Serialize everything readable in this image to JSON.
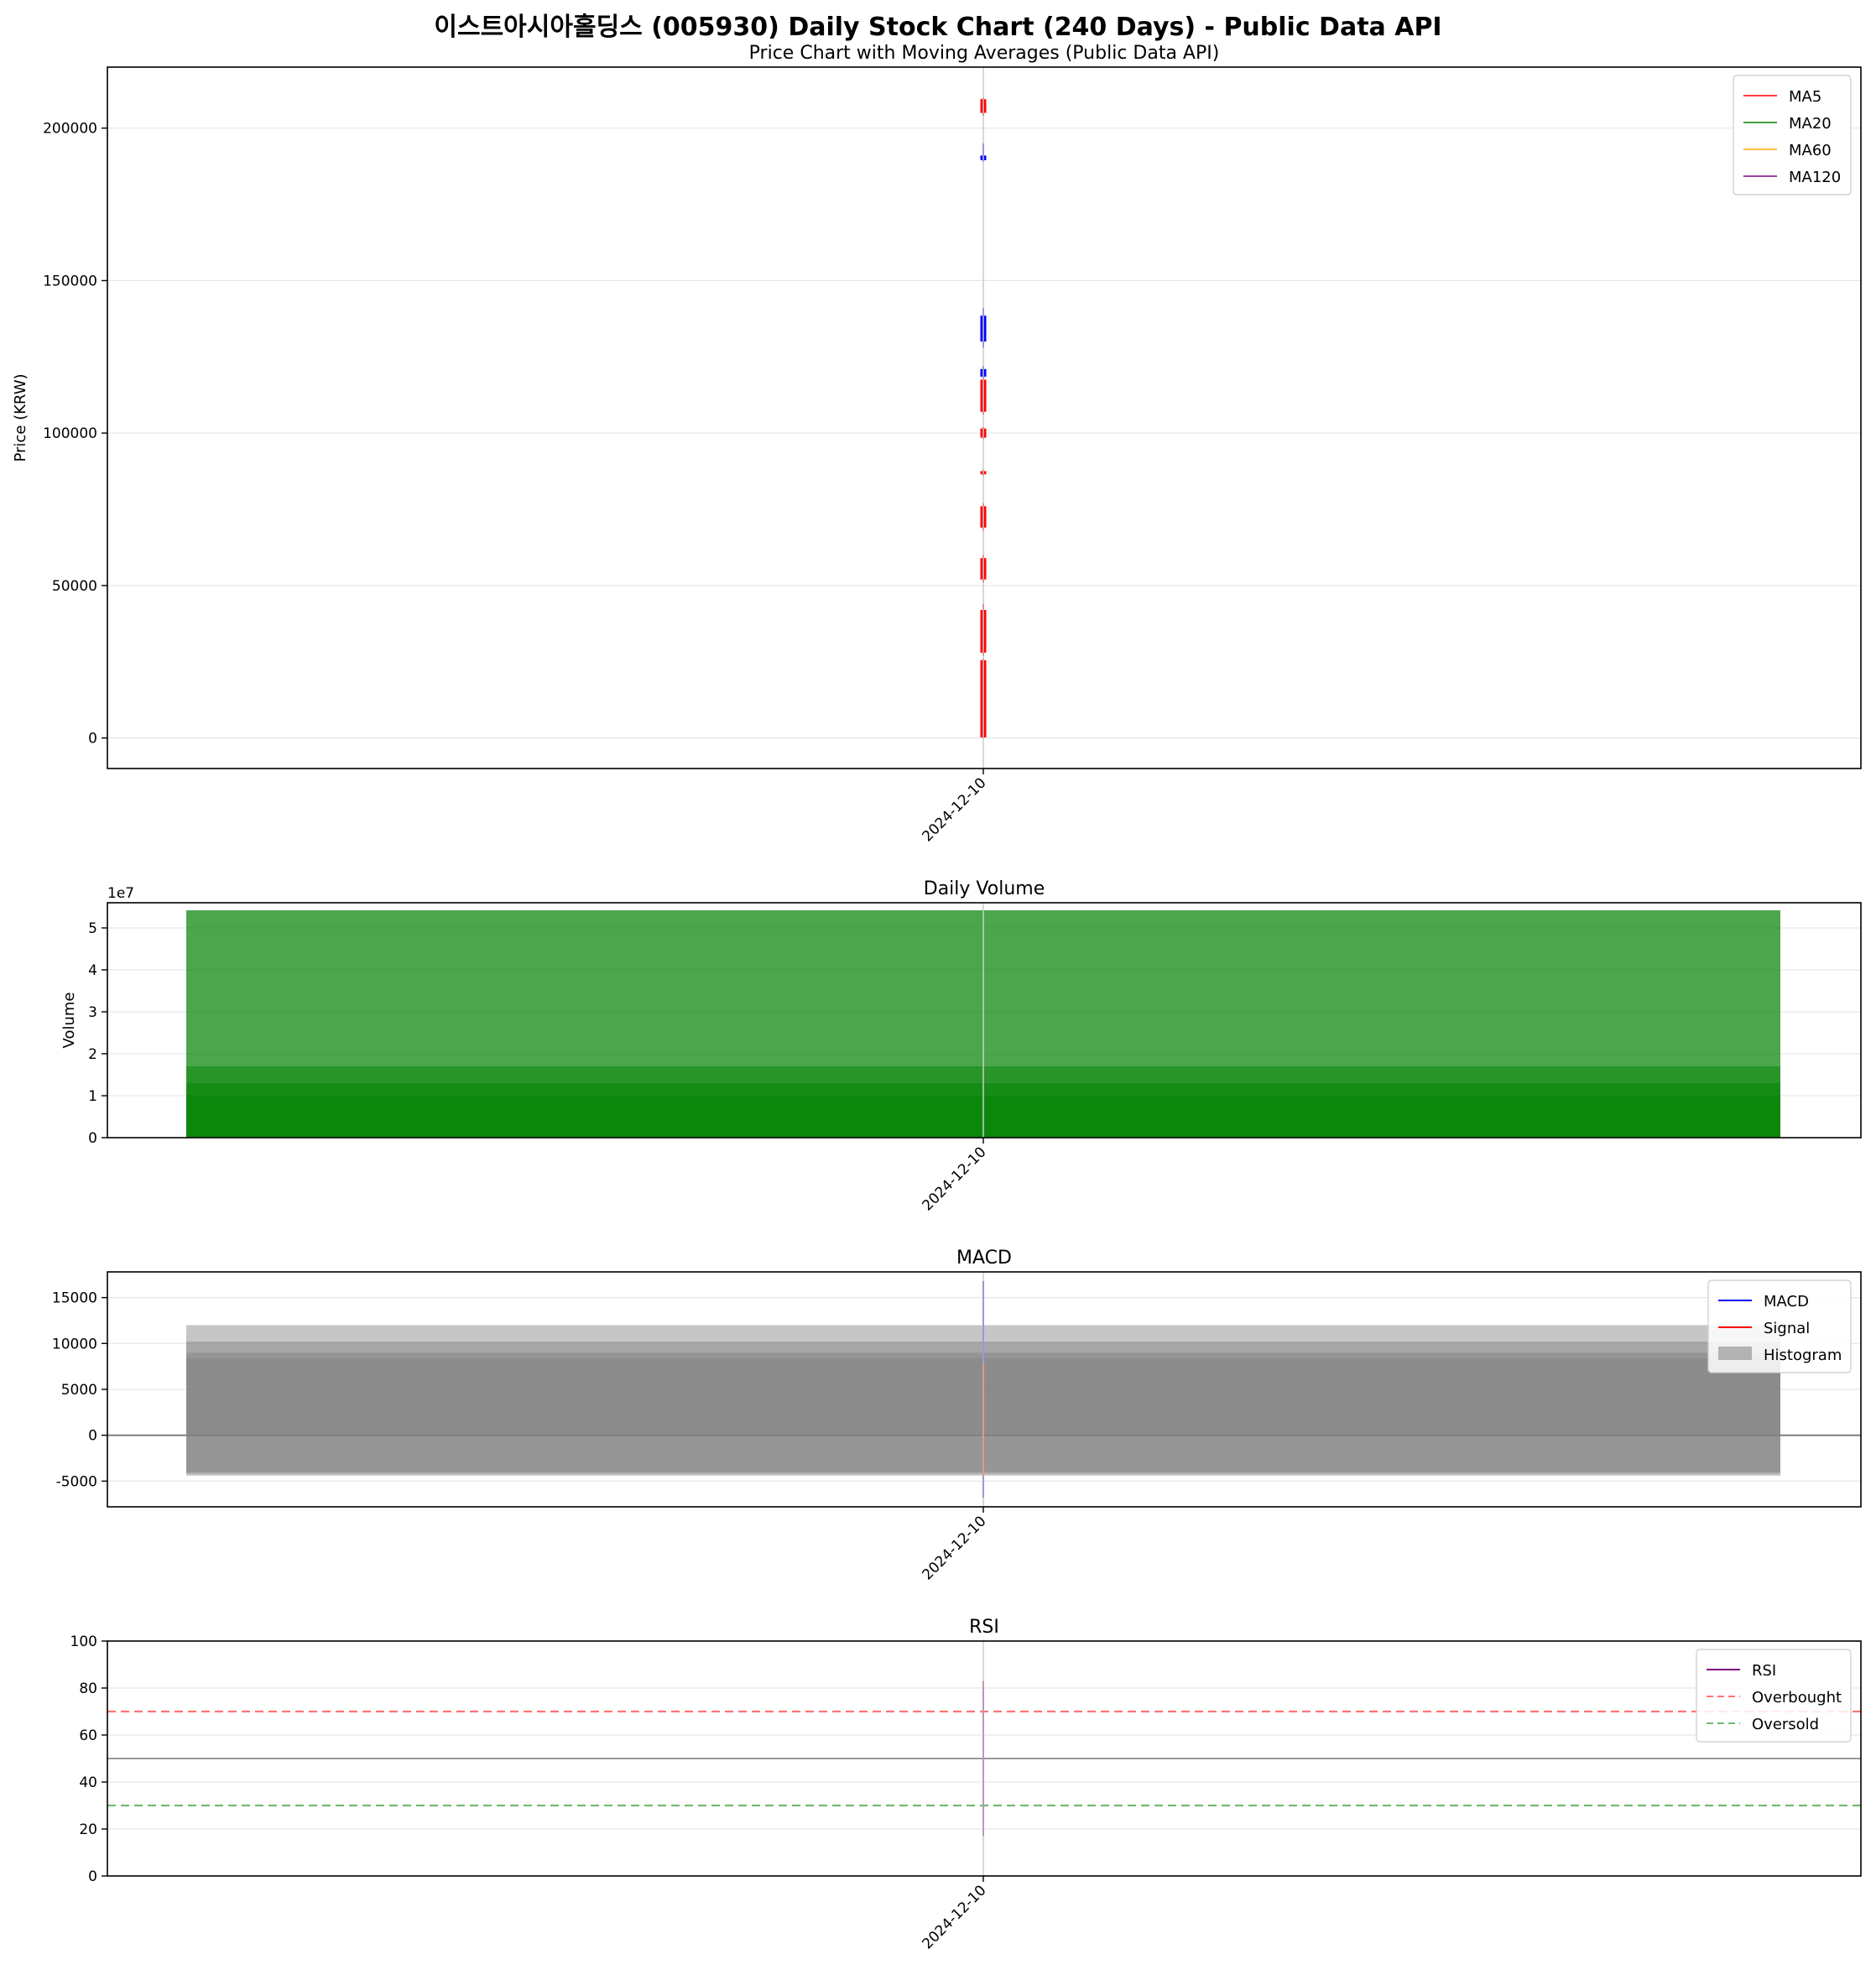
{
  "figure": {
    "title": "이스트아시아홀딩스 (005930) Daily Stock Chart (240 Days) - Public Data API"
  },
  "chart_data": [
    {
      "type": "candlestick",
      "title": "Price Chart with Moving Averages (Public Data API)",
      "ylabel": "Price (KRW)",
      "xlabel": "",
      "x_tick_labels": [
        "2024-12-10"
      ],
      "ylim": [
        -10000,
        220000
      ],
      "y_ticks": [
        0,
        50000,
        100000,
        150000,
        200000
      ],
      "grid": true,
      "legend_position": "upper-right",
      "series": [
        {
          "name": "MA5",
          "color": "#ff0000"
        },
        {
          "name": "MA20",
          "color": "#008000"
        },
        {
          "name": "MA60",
          "color": "#ffa500"
        },
        {
          "name": "MA120",
          "color": "#800080"
        }
      ],
      "candles": [
        {
          "low": 204000,
          "high": 210000,
          "open": 205000,
          "close": 209500,
          "color": "#ff0000"
        },
        {
          "low": 189000,
          "high": 195000,
          "open": 191000,
          "close": 189500,
          "color": "#0000ff"
        },
        {
          "low": 128000,
          "high": 141000,
          "open": 138500,
          "close": 130000,
          "color": "#0000ff"
        },
        {
          "low": 118000,
          "high": 122000,
          "open": 121000,
          "close": 118500,
          "color": "#0000ff"
        },
        {
          "low": 106000,
          "high": 118000,
          "open": 107000,
          "close": 117500,
          "color": "#ff0000"
        },
        {
          "low": 98000,
          "high": 102000,
          "open": 98500,
          "close": 101500,
          "color": "#ff0000"
        },
        {
          "low": 86000,
          "high": 88000,
          "open": 86500,
          "close": 87500,
          "color": "#ff0000"
        },
        {
          "low": 68000,
          "high": 77000,
          "open": 69000,
          "close": 76000,
          "color": "#ff0000"
        },
        {
          "low": 51000,
          "high": 60000,
          "open": 52000,
          "close": 59000,
          "color": "#ff0000"
        },
        {
          "low": 27000,
          "high": 44000,
          "open": 28000,
          "close": 42000,
          "color": "#ff0000"
        },
        {
          "low": 0,
          "high": 26000,
          "open": 200,
          "close": 25500,
          "color": "#ff0000"
        }
      ]
    },
    {
      "type": "bar",
      "title": "Daily Volume",
      "ylabel": "Volume",
      "offset_label": "1e7",
      "x_tick_labels": [
        "2024-12-10"
      ],
      "ylim": [
        0,
        5.6
      ],
      "y_ticks": [
        0,
        1,
        2,
        3,
        4,
        5
      ],
      "grid": true,
      "values": [
        5.42,
        1.7,
        1.3,
        1.0
      ],
      "color": "#008000"
    },
    {
      "type": "line",
      "title": "MACD",
      "x_tick_labels": [
        "2024-12-10"
      ],
      "ylim": [
        -7800,
        17800
      ],
      "y_ticks": [
        -5000,
        0,
        5000,
        10000,
        15000
      ],
      "grid": true,
      "legend_position": "upper-right",
      "series": [
        {
          "name": "MACD",
          "color": "#0000ff",
          "min": -6800,
          "max": 16800
        },
        {
          "name": "Signal",
          "color": "#ff0000",
          "min": -4500,
          "max": 8000
        },
        {
          "name": "Histogram",
          "color": "#808080",
          "upper_values": [
            12000,
            10200,
            9000,
            8400
          ],
          "lower_values": [
            -4000,
            -4200,
            -4400
          ]
        }
      ]
    },
    {
      "type": "line",
      "title": "RSI",
      "x_tick_labels": [
        "2024-12-10"
      ],
      "ylim": [
        0,
        100
      ],
      "y_ticks": [
        0,
        20,
        40,
        60,
        80,
        100
      ],
      "grid": true,
      "legend_position": "upper-right",
      "series": [
        {
          "name": "RSI",
          "color": "#800080",
          "min": 17,
          "max": 83
        },
        {
          "name": "Overbought",
          "color": "#ff0000",
          "value": 70
        },
        {
          "name": "Oversold",
          "color": "#008000",
          "value": 30
        }
      ]
    }
  ]
}
